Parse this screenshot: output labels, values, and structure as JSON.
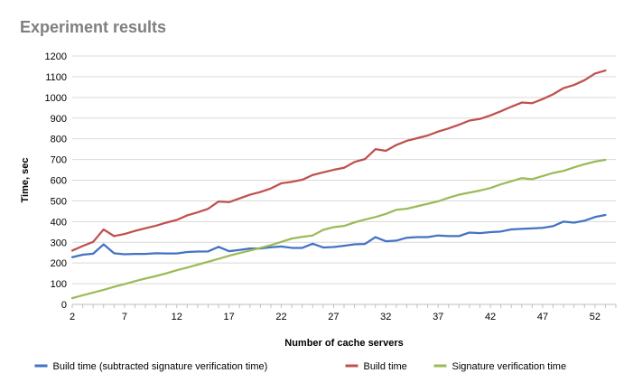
{
  "chart_data": {
    "type": "line",
    "title": "Experiment results",
    "xlabel": "Number of cache servers",
    "ylabel": "Time, sec",
    "xlim": [
      2,
      54
    ],
    "ylim": [
      0,
      1200
    ],
    "x_ticks": [
      2,
      7,
      12,
      17,
      22,
      27,
      32,
      37,
      42,
      47,
      52
    ],
    "y_ticks": [
      0,
      100,
      200,
      300,
      400,
      500,
      600,
      700,
      800,
      900,
      1000,
      1100,
      1200
    ],
    "grid": true,
    "legend_position": "bottom",
    "x": [
      2,
      3,
      4,
      5,
      6,
      7,
      8,
      9,
      10,
      11,
      12,
      13,
      14,
      15,
      16,
      17,
      18,
      19,
      20,
      21,
      22,
      23,
      24,
      25,
      26,
      27,
      28,
      29,
      30,
      31,
      32,
      33,
      34,
      35,
      36,
      37,
      38,
      39,
      40,
      41,
      42,
      43,
      44,
      45,
      46,
      47,
      48,
      49,
      50,
      51,
      52,
      53
    ],
    "series": [
      {
        "name": "Build time (subtracted signature verification time)",
        "color": "#4472c4",
        "values": [
          228,
          240,
          245,
          290,
          247,
          242,
          244,
          244,
          247,
          246,
          246,
          253,
          255,
          256,
          278,
          257,
          263,
          270,
          270,
          276,
          280,
          273,
          273,
          293,
          275,
          277,
          283,
          290,
          292,
          325,
          305,
          308,
          322,
          325,
          325,
          333,
          330,
          330,
          347,
          344,
          349,
          352,
          362,
          365,
          367,
          370,
          378,
          400,
          395,
          404,
          422,
          432
        ]
      },
      {
        "name": "Build time",
        "color": "#c0504d",
        "values": [
          260,
          282,
          302,
          362,
          330,
          340,
          355,
          368,
          380,
          395,
          408,
          430,
          445,
          462,
          497,
          494,
          512,
          530,
          543,
          560,
          585,
          592,
          602,
          625,
          638,
          650,
          660,
          688,
          702,
          750,
          742,
          770,
          790,
          803,
          816,
          835,
          850,
          868,
          888,
          896,
          913,
          933,
          955,
          975,
          972,
          992,
          1015,
          1045,
          1060,
          1083,
          1115,
          1130
        ]
      },
      {
        "name": "Signature verification time",
        "color": "#9bbb59",
        "values": [
          30,
          44,
          57,
          70,
          85,
          98,
          112,
          125,
          137,
          150,
          165,
          178,
          192,
          206,
          220,
          235,
          248,
          260,
          273,
          286,
          302,
          318,
          326,
          333,
          360,
          373,
          379,
          396,
          410,
          422,
          437,
          457,
          462,
          474,
          486,
          498,
          515,
          530,
          540,
          550,
          562,
          580,
          595,
          610,
          605,
          620,
          635,
          645,
          662,
          677,
          690,
          698
        ]
      }
    ]
  }
}
